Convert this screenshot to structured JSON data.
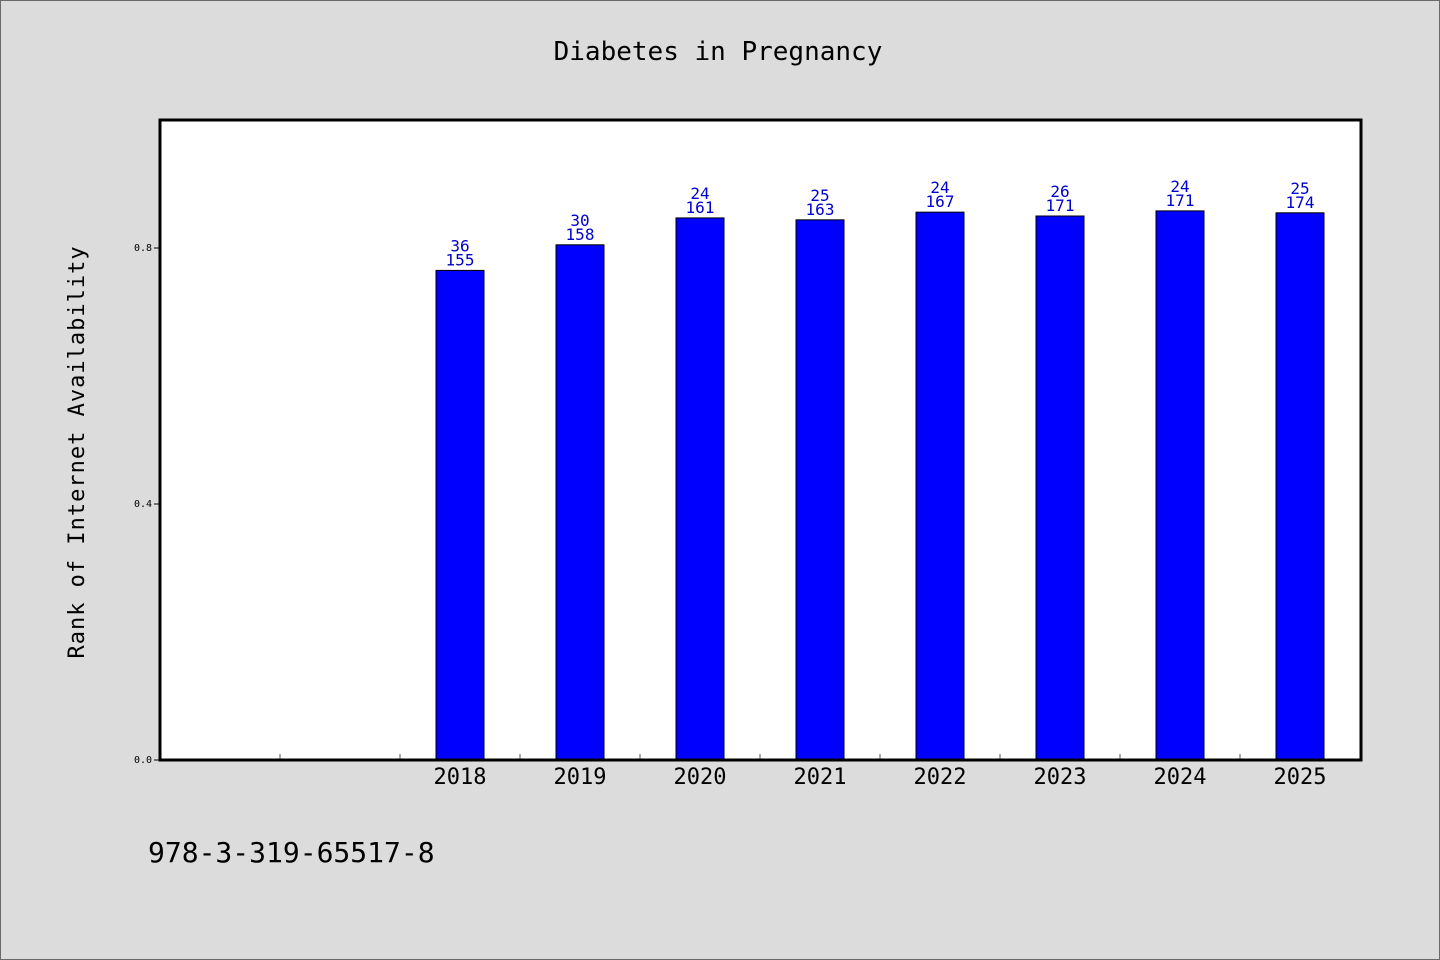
{
  "chart_data": {
    "type": "bar",
    "title": "Diabetes in Pregnancy",
    "xlabel": "",
    "ylabel": "Rank of Internet Availability",
    "categories": [
      "",
      "",
      "2018",
      "2019",
      "2020",
      "2021",
      "2022",
      "2023",
      "2024",
      "2025"
    ],
    "values": [
      null,
      null,
      0.765,
      0.805,
      0.847,
      0.844,
      0.856,
      0.85,
      0.858,
      0.855
    ],
    "label_top": [
      "",
      "",
      "36",
      "30",
      "24",
      "25",
      "24",
      "26",
      "24",
      "25"
    ],
    "label_bottom": [
      "",
      "",
      "155",
      "158",
      "161",
      "163",
      "167",
      "171",
      "171",
      "174"
    ],
    "ylim": [
      0,
      1.0
    ],
    "yticks": [
      "0.0",
      "0.4",
      "0.8"
    ],
    "ytick_values": [
      0.0,
      0.4,
      0.8
    ],
    "bar_color": "#0000ff",
    "label_color": "#0000cc",
    "grid": false,
    "legend": "none"
  },
  "footer": {
    "isbn": "978-3-319-65517-8"
  }
}
